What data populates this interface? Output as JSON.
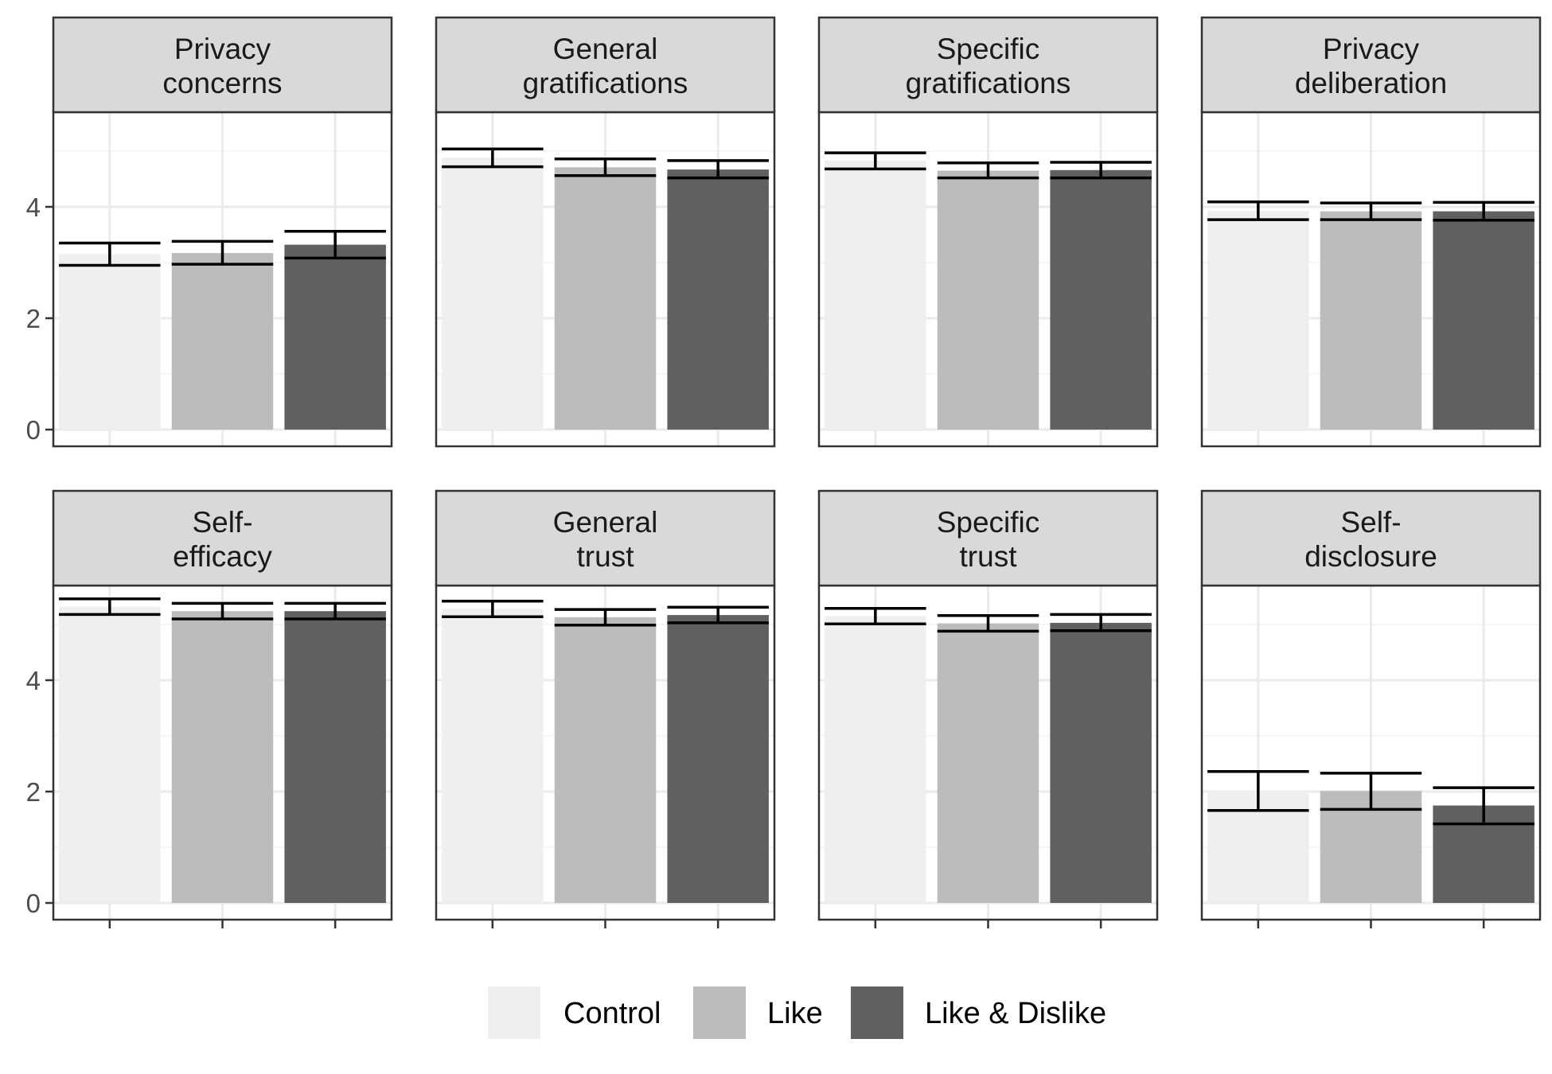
{
  "chart_data": {
    "type": "bar",
    "facets": [
      {
        "title": [
          "Privacy",
          "concerns"
        ],
        "values": [
          3.15,
          3.17,
          3.32
        ],
        "errors": [
          [
            2.95,
            3.35
          ],
          [
            2.97,
            3.38
          ],
          [
            3.08,
            3.56
          ]
        ]
      },
      {
        "title": [
          "General",
          "gratifications"
        ],
        "values": [
          4.88,
          4.71,
          4.67
        ],
        "errors": [
          [
            4.72,
            5.04
          ],
          [
            4.56,
            4.86
          ],
          [
            4.52,
            4.83
          ]
        ]
      },
      {
        "title": [
          "Specific",
          "gratifications"
        ],
        "values": [
          4.83,
          4.65,
          4.66
        ],
        "errors": [
          [
            4.68,
            4.97
          ],
          [
            4.52,
            4.79
          ],
          [
            4.52,
            4.8
          ]
        ]
      },
      {
        "title": [
          "Privacy",
          "deliberation"
        ],
        "values": [
          3.93,
          3.92,
          3.92
        ],
        "errors": [
          [
            3.77,
            4.09
          ],
          [
            3.77,
            4.07
          ],
          [
            3.76,
            4.08
          ]
        ]
      },
      {
        "title": [
          "Self-",
          "efficacy"
        ],
        "values": [
          5.32,
          5.24,
          5.24
        ],
        "errors": [
          [
            5.18,
            5.46
          ],
          [
            5.1,
            5.38
          ],
          [
            5.1,
            5.38
          ]
        ]
      },
      {
        "title": [
          "General",
          "trust"
        ],
        "values": [
          5.28,
          5.13,
          5.17
        ],
        "errors": [
          [
            5.14,
            5.42
          ],
          [
            4.99,
            5.27
          ],
          [
            5.03,
            5.31
          ]
        ]
      },
      {
        "title": [
          "Specific",
          "trust"
        ],
        "values": [
          5.15,
          5.02,
          5.03
        ],
        "errors": [
          [
            5.01,
            5.29
          ],
          [
            4.88,
            5.16
          ],
          [
            4.89,
            5.18
          ]
        ]
      },
      {
        "title": [
          "Self-",
          "disclosure"
        ],
        "values": [
          2.01,
          2.01,
          1.75
        ],
        "errors": [
          [
            1.66,
            2.36
          ],
          [
            1.68,
            2.33
          ],
          [
            1.42,
            2.07
          ]
        ]
      }
    ],
    "series": [
      {
        "name": "Control",
        "color": "#efefef"
      },
      {
        "name": "Like",
        "color": "#bcbcbc"
      },
      {
        "name": "Like & Dislike",
        "color": "#606060"
      }
    ],
    "yticks": [
      0,
      2,
      4
    ],
    "ylim": [
      -0.3,
      5.7
    ],
    "grid": true,
    "legend": "bottom"
  }
}
